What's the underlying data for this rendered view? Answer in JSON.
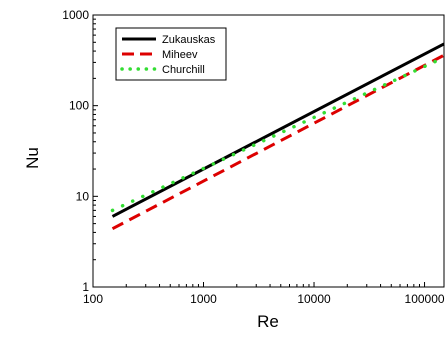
{
  "chart_data": {
    "type": "line",
    "xlabel": "Re",
    "ylabel": "Nu",
    "x_scale": "log",
    "y_scale": "log",
    "xlim": [
      100,
      150000
    ],
    "ylim": [
      1,
      1000
    ],
    "x_ticks": [
      {
        "value": 100,
        "label": "100"
      },
      {
        "value": 1000,
        "label": "1000"
      },
      {
        "value": 10000,
        "label": "10000"
      },
      {
        "value": 100000,
        "label": "100000"
      }
    ],
    "y_ticks": [
      {
        "value": 1,
        "label": "1"
      },
      {
        "value": 10,
        "label": "10"
      },
      {
        "value": 100,
        "label": "100"
      },
      {
        "value": 1000,
        "label": "1000"
      }
    ],
    "legend_position": "top-left",
    "series": [
      {
        "name": "Zukauskas",
        "color": "#000000",
        "style": "solid",
        "x": [
          150,
          150000
        ],
        "y": [
          6.0,
          480
        ]
      },
      {
        "name": "Miheev",
        "color": "#dd0000",
        "style": "dashed",
        "x": [
          150,
          150000
        ],
        "y": [
          4.4,
          360
        ]
      },
      {
        "name": "Churchill",
        "color": "#33dd33",
        "style": "dotted",
        "x": [
          150,
          150000
        ],
        "y": [
          7.0,
          340
        ]
      }
    ]
  }
}
